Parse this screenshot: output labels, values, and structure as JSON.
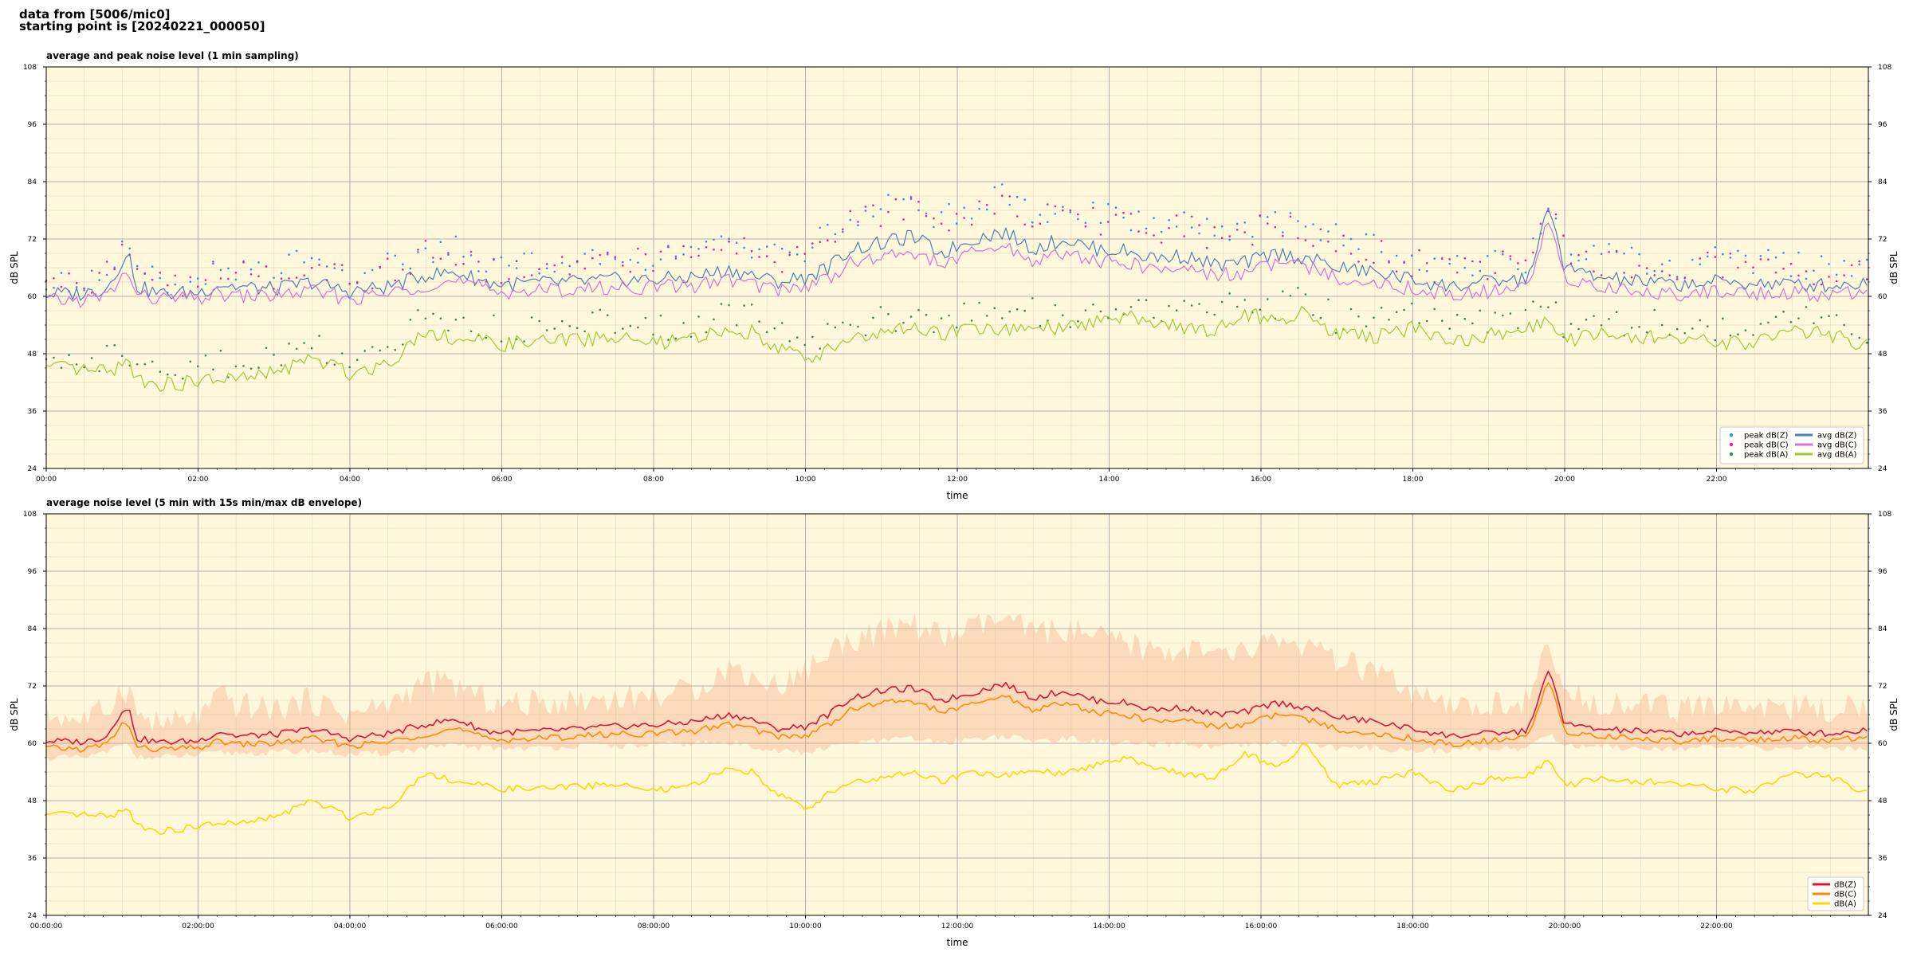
{
  "header": {
    "line1": "data from [5006/mic0]",
    "line2": "starting point is [20240221_000050]"
  },
  "chart_data": [
    {
      "type": "line",
      "title": "average and peak noise level (1 min sampling)",
      "xlabel": "time",
      "ylabel": "dB SPL",
      "xlim_hours": [
        0,
        24
      ],
      "ylim": [
        24,
        108
      ],
      "yticks": [
        24,
        36,
        48,
        60,
        72,
        84,
        96,
        108
      ],
      "xtick_hours": [
        0,
        2,
        4,
        6,
        8,
        10,
        12,
        14,
        16,
        18,
        20,
        22
      ],
      "xtick_labels": [
        "00:00",
        "02:00",
        "04:00",
        "06:00",
        "08:00",
        "10:00",
        "12:00",
        "14:00",
        "16:00",
        "18:00",
        "20:00",
        "22:00"
      ],
      "background": "#fff8dc",
      "grid": true,
      "legend_position": "lower-right",
      "x_hours": [
        0,
        0.5,
        0.8,
        1.0,
        1.1,
        1.2,
        1.5,
        2.0,
        2.3,
        2.5,
        3.0,
        3.5,
        4.0,
        4.5,
        5.0,
        5.4,
        5.8,
        6.0,
        6.5,
        7.0,
        7.5,
        8.0,
        8.5,
        9.0,
        9.3,
        9.6,
        10.0,
        10.3,
        10.6,
        11.0,
        11.4,
        11.8,
        12.2,
        12.6,
        13.0,
        13.4,
        13.8,
        14.2,
        14.6,
        15.0,
        15.4,
        15.8,
        16.2,
        16.6,
        17.0,
        17.5,
        18.0,
        18.5,
        19.0,
        19.5,
        19.8,
        20.0,
        20.4,
        21.0,
        21.5,
        22.0,
        22.5,
        23.0,
        23.5,
        23.98
      ],
      "series": [
        {
          "name": "avg dB(Z)",
          "kind": "line",
          "color": "#4682b4",
          "values": [
            60.5,
            60.6,
            61.8,
            67.5,
            68.0,
            62.0,
            60.5,
            60.8,
            62.6,
            62.0,
            61.5,
            63.0,
            61.0,
            62.0,
            64.5,
            65.0,
            63.0,
            62.5,
            62.8,
            63.0,
            63.5,
            63.5,
            64.0,
            65.5,
            64.5,
            63.0,
            64.0,
            66.0,
            70.0,
            71.0,
            72.5,
            69.0,
            72.0,
            73.5,
            70.0,
            72.0,
            70.0,
            69.5,
            68.0,
            68.5,
            66.5,
            67.0,
            69.0,
            68.0,
            66.0,
            65.0,
            63.5,
            62.0,
            63.0,
            63.5,
            78.5,
            66.0,
            64.0,
            63.0,
            62.5,
            63.0,
            62.8,
            62.5,
            62.3,
            62.8
          ]
        },
        {
          "name": "avg dB(C)",
          "kind": "line",
          "color": "#da70d6",
          "values": [
            59.0,
            59.2,
            60.0,
            64.0,
            64.5,
            60.0,
            59.5,
            59.5,
            60.5,
            60.0,
            60.2,
            61.0,
            59.5,
            60.5,
            62.5,
            63.0,
            61.5,
            61.0,
            61.2,
            61.5,
            61.8,
            62.0,
            62.2,
            63.5,
            62.5,
            61.5,
            62.0,
            64.0,
            67.0,
            68.0,
            69.5,
            66.5,
            69.0,
            70.5,
            67.5,
            69.0,
            67.5,
            67.0,
            65.5,
            66.0,
            64.5,
            65.0,
            67.0,
            66.0,
            64.0,
            63.0,
            61.5,
            60.5,
            61.0,
            61.5,
            76.5,
            64.0,
            62.0,
            61.0,
            60.5,
            61.0,
            60.8,
            60.5,
            60.3,
            60.8
          ]
        },
        {
          "name": "avg dB(A)",
          "kind": "line",
          "color": "#9acd32",
          "values": [
            45.0,
            44.5,
            44.0,
            46.0,
            45.5,
            43.0,
            41.5,
            42.0,
            43.0,
            42.5,
            44.0,
            47.0,
            44.0,
            46.0,
            53.0,
            51.0,
            50.5,
            50.0,
            50.5,
            51.0,
            51.5,
            50.0,
            51.0,
            53.0,
            52.5,
            50.0,
            46.5,
            49.0,
            51.5,
            52.0,
            53.5,
            52.0,
            53.5,
            52.5,
            54.0,
            53.0,
            55.0,
            56.0,
            54.5,
            53.5,
            53.0,
            56.5,
            55.0,
            57.0,
            52.0,
            51.5,
            53.5,
            50.5,
            52.0,
            53.0,
            56.0,
            50.5,
            52.0,
            51.5,
            51.0,
            50.5,
            50.0,
            52.5,
            52.0,
            49.5
          ]
        },
        {
          "name": "peak dB(Z)",
          "kind": "scatter",
          "color": "#1f9ad6",
          "values": [
            63.0,
            63.5,
            66.0,
            71.0,
            71.5,
            65.5,
            63.5,
            64.0,
            67.0,
            66.0,
            65.5,
            67.5,
            64.5,
            66.0,
            70.0,
            70.5,
            67.0,
            66.5,
            67.0,
            67.5,
            68.0,
            68.0,
            69.0,
            71.0,
            70.0,
            68.0,
            70.0,
            73.0,
            77.0,
            78.0,
            80.0,
            76.0,
            79.0,
            81.0,
            77.0,
            79.0,
            77.0,
            76.5,
            75.0,
            75.5,
            73.0,
            74.0,
            76.0,
            75.0,
            72.0,
            70.5,
            68.0,
            66.0,
            67.5,
            68.0,
            81.0,
            71.0,
            68.5,
            67.0,
            66.5,
            67.5,
            67.0,
            66.5,
            66.0,
            67.0
          ]
        },
        {
          "name": "peak dB(C)",
          "kind": "scatter",
          "color": "#ff1493",
          "values": [
            62.0,
            62.5,
            65.0,
            70.0,
            70.5,
            64.5,
            62.5,
            63.0,
            66.0,
            65.0,
            64.5,
            66.5,
            63.5,
            65.0,
            69.0,
            69.5,
            66.0,
            65.5,
            66.0,
            66.5,
            67.0,
            67.0,
            68.0,
            70.0,
            69.0,
            67.0,
            69.0,
            72.0,
            76.0,
            77.0,
            79.0,
            75.0,
            78.0,
            80.0,
            76.0,
            78.0,
            76.0,
            75.5,
            74.0,
            74.5,
            72.0,
            73.0,
            75.0,
            74.0,
            71.0,
            69.5,
            67.0,
            65.0,
            66.5,
            67.0,
            80.0,
            70.0,
            67.5,
            66.0,
            65.5,
            66.5,
            66.0,
            65.5,
            65.0,
            66.0
          ]
        },
        {
          "name": "peak dB(A)",
          "kind": "scatter",
          "color": "#2e8b57",
          "values": [
            48.0,
            47.5,
            47.0,
            49.0,
            48.5,
            46.0,
            44.5,
            45.0,
            46.0,
            45.5,
            47.0,
            50.0,
            47.0,
            49.0,
            56.0,
            54.0,
            53.5,
            53.0,
            53.5,
            54.0,
            54.5,
            53.0,
            54.0,
            56.0,
            55.5,
            53.0,
            49.5,
            52.0,
            54.5,
            55.0,
            56.5,
            55.0,
            56.5,
            55.5,
            57.0,
            56.0,
            58.0,
            59.0,
            57.5,
            56.5,
            56.0,
            59.5,
            58.0,
            60.0,
            55.0,
            54.5,
            56.5,
            53.5,
            55.0,
            56.0,
            59.0,
            53.5,
            55.0,
            54.5,
            54.0,
            53.5,
            53.0,
            55.5,
            55.0,
            52.5
          ]
        }
      ]
    },
    {
      "type": "line",
      "title": "average noise level (5 min with 15s min/max dB envelope)",
      "xlabel": "time",
      "ylabel": "dB SPL",
      "xlim_hours": [
        0,
        24
      ],
      "ylim": [
        24,
        108
      ],
      "yticks": [
        24,
        36,
        48,
        60,
        72,
        84,
        96,
        108
      ],
      "xtick_hours": [
        0,
        2,
        4,
        6,
        8,
        10,
        12,
        14,
        16,
        18,
        20,
        22
      ],
      "xtick_labels": [
        "00:00:00",
        "02:00:00",
        "04:00:00",
        "06:00:00",
        "08:00:00",
        "10:00:00",
        "12:00:00",
        "14:00:00",
        "16:00:00",
        "18:00:00",
        "20:00:00",
        "22:00:00"
      ],
      "background": "#fff8dc",
      "grid": true,
      "legend_position": "lower-right",
      "envelope": {
        "color": "#f4a582",
        "max": [
          66.0,
          65.0,
          67.0,
          72.0,
          71.0,
          66.0,
          64.0,
          65.0,
          70.0,
          68.0,
          67.0,
          69.0,
          66.0,
          68.0,
          73.0,
          72.0,
          69.0,
          68.0,
          68.5,
          69.0,
          69.5,
          70.0,
          71.0,
          76.0,
          74.0,
          72.0,
          75.0,
          79.0,
          82.0,
          83.0,
          85.0,
          82.0,
          84.0,
          86.0,
          83.0,
          84.0,
          82.0,
          81.0,
          79.0,
          80.0,
          78.0,
          79.0,
          82.0,
          80.0,
          77.0,
          75.0,
          70.0,
          67.0,
          68.0,
          69.0,
          80.0,
          70.0,
          69.0,
          68.0,
          67.0,
          68.0,
          68.0,
          67.5,
          67.0,
          68.0
        ],
        "min": [
          57.0,
          57.0,
          58.0,
          60.0,
          60.0,
          57.0,
          57.0,
          57.5,
          58.0,
          58.0,
          58.0,
          58.5,
          57.5,
          58.0,
          59.0,
          59.5,
          59.0,
          59.0,
          59.0,
          59.5,
          59.5,
          59.5,
          60.0,
          60.0,
          59.5,
          58.5,
          58.0,
          59.0,
          60.0,
          60.5,
          61.0,
          60.0,
          61.0,
          61.5,
          60.5,
          61.0,
          60.5,
          60.0,
          59.5,
          60.0,
          59.0,
          59.5,
          60.0,
          60.0,
          59.0,
          59.0,
          58.5,
          58.5,
          59.0,
          59.0,
          62.0,
          59.5,
          59.5,
          59.0,
          59.0,
          59.0,
          59.0,
          59.0,
          59.0,
          59.0
        ]
      },
      "x_hours": [
        0,
        0.5,
        0.8,
        1.0,
        1.1,
        1.2,
        1.5,
        2.0,
        2.3,
        2.5,
        3.0,
        3.5,
        4.0,
        4.5,
        5.0,
        5.4,
        5.8,
        6.0,
        6.5,
        7.0,
        7.5,
        8.0,
        8.5,
        9.0,
        9.3,
        9.6,
        10.0,
        10.3,
        10.6,
        11.0,
        11.4,
        11.8,
        12.2,
        12.6,
        13.0,
        13.4,
        13.8,
        14.2,
        14.6,
        15.0,
        15.4,
        15.8,
        16.2,
        16.6,
        17.0,
        17.5,
        18.0,
        18.5,
        19.0,
        19.5,
        19.8,
        20.0,
        20.4,
        21.0,
        21.5,
        22.0,
        22.5,
        23.0,
        23.5,
        23.98
      ],
      "series": [
        {
          "name": "dB(Z)",
          "kind": "line",
          "color": "#dc143c",
          "values": [
            60.5,
            60.3,
            61.5,
            67.0,
            66.5,
            61.0,
            60.2,
            60.5,
            62.5,
            61.5,
            61.8,
            63.0,
            61.0,
            62.0,
            64.0,
            65.0,
            62.5,
            62.3,
            62.5,
            63.0,
            63.5,
            63.8,
            64.5,
            66.0,
            65.0,
            63.0,
            63.5,
            66.0,
            69.5,
            71.0,
            71.5,
            69.0,
            70.5,
            72.5,
            69.5,
            71.0,
            69.0,
            68.5,
            67.0,
            67.5,
            66.0,
            66.5,
            68.5,
            67.5,
            65.5,
            64.5,
            63.0,
            61.5,
            62.0,
            62.5,
            75.5,
            64.0,
            63.0,
            62.5,
            62.0,
            62.5,
            62.3,
            62.5,
            62.0,
            62.8
          ]
        },
        {
          "name": "dB(C)",
          "kind": "line",
          "color": "#ff8c00",
          "values": [
            59.0,
            58.8,
            59.8,
            64.0,
            63.5,
            59.0,
            58.7,
            59.0,
            60.5,
            59.8,
            60.0,
            61.0,
            59.5,
            60.2,
            62.0,
            63.0,
            61.0,
            60.8,
            61.0,
            61.5,
            62.0,
            62.0,
            62.5,
            64.0,
            63.0,
            61.5,
            61.5,
            64.0,
            67.0,
            68.5,
            69.0,
            66.5,
            68.0,
            70.0,
            67.0,
            68.5,
            66.5,
            66.0,
            64.5,
            65.0,
            63.5,
            64.0,
            66.0,
            65.0,
            63.0,
            62.0,
            61.0,
            59.8,
            60.5,
            61.0,
            73.5,
            62.5,
            61.5,
            61.0,
            60.5,
            61.0,
            60.8,
            61.0,
            60.5,
            61.2
          ]
        },
        {
          "name": "dB(A)",
          "kind": "line",
          "color": "#ffd700",
          "values": [
            45.0,
            45.0,
            44.5,
            46.0,
            45.5,
            43.0,
            41.5,
            42.5,
            43.5,
            43.0,
            44.5,
            48.0,
            44.5,
            46.5,
            54.0,
            52.0,
            51.0,
            50.5,
            50.5,
            51.0,
            51.5,
            50.0,
            51.0,
            55.0,
            54.0,
            50.0,
            46.0,
            49.5,
            52.0,
            52.5,
            54.0,
            52.0,
            54.0,
            53.0,
            54.5,
            53.5,
            55.5,
            57.0,
            55.0,
            53.5,
            53.0,
            58.0,
            55.0,
            60.0,
            51.0,
            52.0,
            54.0,
            50.0,
            52.5,
            53.0,
            57.0,
            51.0,
            52.5,
            52.0,
            51.5,
            50.5,
            50.0,
            53.5,
            53.0,
            49.5
          ]
        }
      ]
    }
  ]
}
